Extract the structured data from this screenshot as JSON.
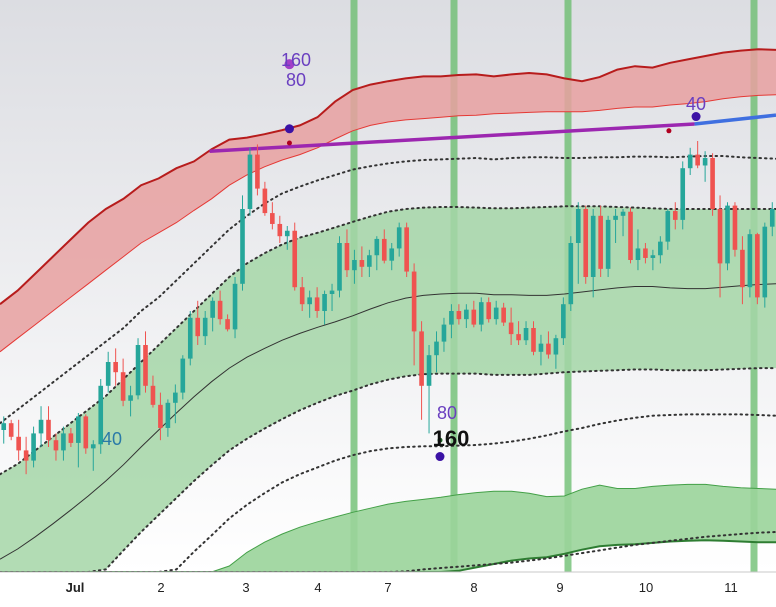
{
  "chart_data": {
    "type": "candlestick",
    "x_axis": {
      "labels": [
        "Jul",
        "2",
        "3",
        "4",
        "7",
        "8",
        "9",
        "10",
        "11"
      ]
    },
    "y_axis": {
      "visible": false,
      "min": 0,
      "max": 100
    },
    "grid": false,
    "colors": {
      "up": "#26a69a",
      "down": "#ef5350",
      "upper_band_fill": "#e8a0a0",
      "upper_band_line": "#b71c1c",
      "lower_band_fill": "#9ad49a",
      "lower_band_line": "#2e7d32",
      "mid_band_fill": "#a5d6a7",
      "vertical_markers": "#66bb6a",
      "trendline_purple": "#9c27b0",
      "trendline_blue": "#3f6fe0",
      "label_purple": "#6a3fc0",
      "label_teal": "#2a7aa8"
    },
    "vertical_markers_at_date": [
      "4",
      "7",
      "8",
      "9",
      "11"
    ],
    "annotations": [
      {
        "id": "ann-160-top",
        "text": "160",
        "color": "purple",
        "near_date": "3"
      },
      {
        "id": "ann-80-top",
        "text": "80",
        "color": "purple",
        "near_date": "3"
      },
      {
        "id": "ann-40-right",
        "text": "40",
        "color": "purple",
        "near_date": "10"
      },
      {
        "id": "ann-40-left",
        "text": "40",
        "color": "teal",
        "near_date": "Jul"
      },
      {
        "id": "ann-80-mid",
        "text": "80",
        "color": "purple",
        "near_date": "7"
      },
      {
        "id": "ann-160-mid",
        "text": "160",
        "color": "black",
        "near_date": "7"
      }
    ],
    "series": {
      "upper_band_top": [
        56,
        58,
        60.5,
        63,
        65.5,
        68,
        70,
        71.5,
        73.5,
        74.5,
        76,
        77,
        78.8,
        80.2,
        80.5,
        81,
        81.6,
        82.3,
        83.5,
        85.8,
        87.5,
        88.3,
        88.8,
        89.2,
        89.5,
        89.5,
        89.7,
        89.8,
        89.5,
        89.8,
        90,
        89.8,
        89.2,
        88.8,
        89.4,
        90.5,
        91,
        90.8,
        91.5,
        92,
        92.5,
        93,
        93.3,
        93.5,
        93.4
      ],
      "upper_band_bottom": [
        49,
        51,
        53,
        55,
        57,
        59,
        61,
        63,
        65,
        66.5,
        68,
        69.8,
        71.5,
        73.5,
        75,
        76.2,
        77.2,
        78,
        79,
        80.3,
        81.5,
        82.3,
        82.8,
        83.1,
        83.3,
        83.5,
        83.7,
        83.8,
        84,
        84.1,
        84.2,
        84.3,
        84.3,
        84.3,
        84.5,
        84.8,
        85,
        85,
        85.3,
        85.5,
        85.8,
        86.2,
        86.5,
        86.7,
        86.8
      ],
      "upper_dotted": [
        38.5,
        40.5,
        42.5,
        44.5,
        46.5,
        48.5,
        50.5,
        52.5,
        55,
        57,
        59.5,
        62,
        64.5,
        67,
        69,
        70.8,
        72.3,
        73.3,
        74.2,
        75,
        75.8,
        76.3,
        76.7,
        77,
        77.2,
        77.3,
        77.4,
        77.5,
        77.3,
        77.5,
        77.6,
        77.6,
        77.5,
        77.5,
        77.6,
        77.6,
        77.7,
        77.7,
        77.6,
        77.7,
        77.8,
        77.8,
        77.6,
        77.5,
        77.4
      ],
      "mid_band_top": [
        31,
        32.5,
        34.5,
        36.5,
        38.5,
        40.5,
        42.5,
        45,
        47.5,
        50,
        52.5,
        55,
        57.5,
        60,
        62,
        63.5,
        64.8,
        65.8,
        66.5,
        67.3,
        68.1,
        68.9,
        69.6,
        70,
        70.2,
        70.3,
        70.3,
        70.2,
        70.1,
        70.1,
        70.2,
        70.3,
        70.4,
        70.4,
        70.4,
        70.3,
        70.2,
        70.1,
        70,
        70,
        70,
        70,
        70,
        70,
        70
      ],
      "midline": [
        18.5,
        20,
        21.8,
        23.7,
        25.7,
        27.8,
        30,
        32.4,
        35,
        37.5,
        40,
        42.4,
        44.6,
        46.6,
        48.2,
        49.5,
        50.7,
        51.7,
        52.6,
        53.4,
        54.3,
        55.3,
        56.2,
        56.9,
        57.3,
        57.5,
        57.6,
        57.6,
        57.4,
        57.4,
        57.3,
        57.3,
        57.5,
        57.8,
        58.1,
        58.4,
        58.6,
        58.6,
        58.4,
        58.3,
        58.3,
        58.5,
        58.7,
        58.9,
        59
      ],
      "mid_band_bottom": [
        4.5,
        6,
        7.8,
        9.8,
        12,
        14.3,
        17,
        19.8,
        22.5,
        25,
        27.5,
        30,
        32.3,
        34.5,
        36.2,
        37.7,
        39.1,
        40.4,
        41.5,
        42.5,
        43.3,
        44.2,
        44.9,
        45.4,
        45.7,
        45.8,
        45.8,
        45.8,
        45.6,
        45.6,
        45.6,
        45.8,
        46,
        46.1,
        46.2,
        46.3,
        46.4,
        46.4,
        46.3,
        46.3,
        46.3,
        46.4,
        46.5,
        46.6,
        46.6
      ],
      "lower_dotted_1": [
        -3,
        -2,
        -0.5,
        1.2,
        3,
        5,
        7.2,
        9.6,
        12,
        14.5,
        17,
        19.6,
        22,
        24.5,
        26.5,
        28.2,
        29.8,
        31,
        32,
        33,
        33.8,
        34.4,
        34.8,
        35,
        35.1,
        35.1,
        35.2,
        35.3,
        35.5,
        35.8,
        36.2,
        36.7,
        37.3,
        37.8,
        38.4,
        38.9,
        39.3,
        39.6,
        39.7,
        39.8,
        39.8,
        39.8,
        39.8,
        39.7,
        39.6
      ],
      "lower_band_top": [
        -8,
        -7,
        -5.8,
        -4.4,
        -2.8,
        -1,
        1,
        3.3,
        5.5,
        8,
        10.5,
        13,
        15.2,
        17.5,
        19.5,
        21,
        22.2,
        23.2,
        24,
        24.7,
        25.4,
        26,
        26.6,
        27,
        27.3,
        27.6,
        28,
        28.3,
        28.5,
        28.5,
        28.2,
        27.7,
        27.8,
        28.8,
        29.4,
        28.9,
        28.9,
        29.2,
        29.4,
        29.5,
        29.5,
        29.2,
        29,
        28.9,
        28.8
      ],
      "lower_dotted_2": [
        -14,
        -13,
        -12,
        -10.8,
        -9.5,
        -8,
        -6.4,
        -4.6,
        -2.6,
        -0.5,
        1.7,
        3.9,
        6,
        8,
        9.7,
        11.2,
        12.4,
        13.3,
        14,
        14.6,
        15.2,
        15.8,
        16.3,
        16.7,
        17,
        17.2,
        17.4,
        17.6,
        17.8,
        18,
        18.3,
        18.6,
        19,
        19.4,
        19.8,
        20.2,
        20.6,
        20.9,
        21.2,
        21.5,
        21.8,
        22,
        22.2,
        22.4,
        22.5
      ],
      "lower_band_bottom": [
        -20,
        -19,
        -18,
        -16.8,
        -15.5,
        -14,
        -12.4,
        -10.6,
        -8.6,
        -6.5,
        -4.3,
        -2,
        0.2,
        2.4,
        4.4,
        6.2,
        7.8,
        9.3,
        10.6,
        11.8,
        12.8,
        13.7,
        14.5,
        15.2,
        15.8,
        16.3,
        16.8,
        17.3,
        17.8,
        18.3,
        18.6,
        18.8,
        19.3,
        19.9,
        20.4,
        20.6,
        20.7,
        20.9,
        21.1,
        21.2,
        21.3,
        21.2,
        21.1,
        21,
        21
      ],
      "trendline_purple": [
        [
          0.27,
          78.5
        ],
        [
          0.895,
          82.5
        ]
      ],
      "trendline_blue": [
        [
          0.895,
          82.5
        ],
        [
          1.0,
          83.8
        ]
      ],
      "markers": [
        {
          "t": 0.373,
          "v": 91.3,
          "color": "#a23fc8",
          "r": 5
        },
        {
          "t": 0.373,
          "v": 81.8,
          "color": "#3b12a5",
          "r": 4.5
        },
        {
          "t": 0.373,
          "v": 79.7,
          "color": "#b00020",
          "r": 2.5
        },
        {
          "t": 0.567,
          "v": 36.0,
          "color": "#1b5e20",
          "r": 2.5
        },
        {
          "t": 0.567,
          "v": 33.6,
          "color": "#3b12a5",
          "r": 4.5
        },
        {
          "t": 0.897,
          "v": 83.6,
          "color": "#3b12a5",
          "r": 4.5
        },
        {
          "t": 0.862,
          "v": 81.5,
          "color": "#b00020",
          "r": 2.5
        }
      ],
      "candles": [
        [
          37.5,
          39.5,
          35.5,
          38.5
        ],
        [
          38.5,
          39,
          36,
          36.5
        ],
        [
          36.5,
          39,
          33,
          34.5
        ],
        [
          34.5,
          36.5,
          31,
          33
        ],
        [
          33,
          38,
          32,
          37
        ],
        [
          37,
          41,
          35,
          39
        ],
        [
          39,
          41,
          35,
          36
        ],
        [
          36,
          37,
          33,
          34.5
        ],
        [
          34.5,
          38,
          33,
          37
        ],
        [
          37,
          37.8,
          35,
          35.6
        ],
        [
          35.6,
          40,
          32,
          39.5
        ],
        [
          39.5,
          39.8,
          34,
          34.8
        ],
        [
          34.8,
          36,
          31.5,
          35.4
        ],
        [
          35.4,
          45,
          34,
          44
        ],
        [
          44,
          49,
          43,
          47.5
        ],
        [
          47.5,
          49.5,
          44,
          46
        ],
        [
          46,
          48,
          41,
          41.8
        ],
        [
          41.8,
          44,
          39.5,
          42.6
        ],
        [
          42.6,
          51,
          42,
          50
        ],
        [
          50,
          52,
          43,
          44
        ],
        [
          44,
          45.5,
          40.8,
          41.2
        ],
        [
          41.2,
          43,
          36,
          37.8
        ],
        [
          37.8,
          42,
          36.5,
          41.5
        ],
        [
          41.5,
          44.2,
          38.5,
          43
        ],
        [
          43,
          48.5,
          42,
          48
        ],
        [
          48,
          55,
          47,
          54
        ],
        [
          54,
          56.5,
          50,
          51.3
        ],
        [
          51.3,
          55,
          50,
          54
        ],
        [
          54,
          57,
          52,
          56.5
        ],
        [
          56.5,
          58,
          53,
          53.8
        ],
        [
          53.8,
          54.5,
          52,
          52.3
        ],
        [
          52.3,
          60,
          51,
          59
        ],
        [
          59,
          72,
          58,
          70
        ],
        [
          70,
          79,
          69,
          78
        ],
        [
          78,
          79.5,
          72,
          73
        ],
        [
          73,
          74,
          69,
          69.4
        ],
        [
          69.4,
          71,
          67,
          67.8
        ],
        [
          67.8,
          69,
          65,
          66
        ],
        [
          66,
          67.5,
          64,
          66.8
        ],
        [
          66.8,
          68,
          58,
          58.5
        ],
        [
          58.5,
          60,
          55,
          56
        ],
        [
          56,
          58,
          54,
          57
        ],
        [
          57,
          58.5,
          54,
          55
        ],
        [
          55,
          58,
          53,
          57.5
        ],
        [
          57.5,
          59,
          55,
          58
        ],
        [
          58,
          66,
          57,
          65
        ],
        [
          65,
          67,
          60,
          61
        ],
        [
          61,
          64,
          59,
          62.5
        ],
        [
          62.5,
          64.5,
          60,
          61.5
        ],
        [
          61.5,
          64,
          60,
          63.2
        ],
        [
          63.2,
          66,
          61,
          65.6
        ],
        [
          65.6,
          67,
          62,
          62.4
        ],
        [
          62.4,
          65,
          61,
          64.2
        ],
        [
          64.2,
          68,
          63,
          67.3
        ],
        [
          67.3,
          68,
          60,
          60.8
        ],
        [
          60.8,
          62,
          47,
          52
        ],
        [
          52,
          53.5,
          39,
          44
        ],
        [
          44,
          50,
          37,
          48.5
        ],
        [
          48.5,
          52,
          46,
          50.5
        ],
        [
          50.5,
          54,
          49,
          53
        ],
        [
          53,
          56,
          51,
          55
        ],
        [
          55,
          56,
          53,
          53.8
        ],
        [
          53.8,
          56,
          52.5,
          55.2
        ],
        [
          55.2,
          56.5,
          52.6,
          53
        ],
        [
          53,
          57,
          52,
          56.3
        ],
        [
          56.3,
          57,
          53.3,
          53.8
        ],
        [
          53.8,
          56.5,
          53,
          55.5
        ],
        [
          55.5,
          56.2,
          52.8,
          53.3
        ],
        [
          53.3,
          55.5,
          50,
          51.6
        ],
        [
          51.6,
          53.5,
          50,
          50.7
        ],
        [
          50.7,
          53.5,
          50,
          52.5
        ],
        [
          52.5,
          53.5,
          48.5,
          49
        ],
        [
          49,
          51.5,
          47,
          50.2
        ],
        [
          50.2,
          52,
          48,
          48.6
        ],
        [
          48.6,
          51.5,
          46.5,
          51
        ],
        [
          51,
          57,
          50,
          56
        ],
        [
          56,
          66,
          55,
          65
        ],
        [
          65,
          71,
          59,
          70
        ],
        [
          70,
          70.5,
          59,
          60
        ],
        [
          60,
          70,
          57,
          69
        ],
        [
          69,
          70.5,
          60,
          61.2
        ],
        [
          61.2,
          69,
          60,
          68.4
        ],
        [
          68.4,
          70,
          65,
          69
        ],
        [
          69,
          70,
          66,
          69.6
        ],
        [
          69.6,
          70.2,
          62,
          62.5
        ],
        [
          62.5,
          67,
          61,
          64.2
        ],
        [
          64.2,
          65,
          62,
          62.8
        ],
        [
          62.8,
          64,
          61,
          63.2
        ],
        [
          63.2,
          66,
          62,
          65.2
        ],
        [
          65.2,
          70,
          64,
          69.7
        ],
        [
          69.7,
          71,
          67,
          68.4
        ],
        [
          68.4,
          77,
          67,
          76
        ],
        [
          76,
          79,
          75,
          78
        ],
        [
          78,
          80,
          76,
          76.4
        ],
        [
          76.4,
          78.5,
          74,
          77.5
        ],
        [
          77.5,
          78.2,
          69,
          70
        ],
        [
          70,
          72,
          57,
          62
        ],
        [
          62,
          71,
          61,
          70.5
        ],
        [
          70.5,
          71,
          63,
          64
        ],
        [
          64,
          66,
          56,
          58.5
        ],
        [
          58.5,
          67,
          57,
          66.3
        ],
        [
          66.3,
          66.5,
          56,
          57
        ],
        [
          57,
          68,
          55.5,
          67.4
        ],
        [
          67.4,
          71,
          66,
          70
        ]
      ]
    }
  }
}
